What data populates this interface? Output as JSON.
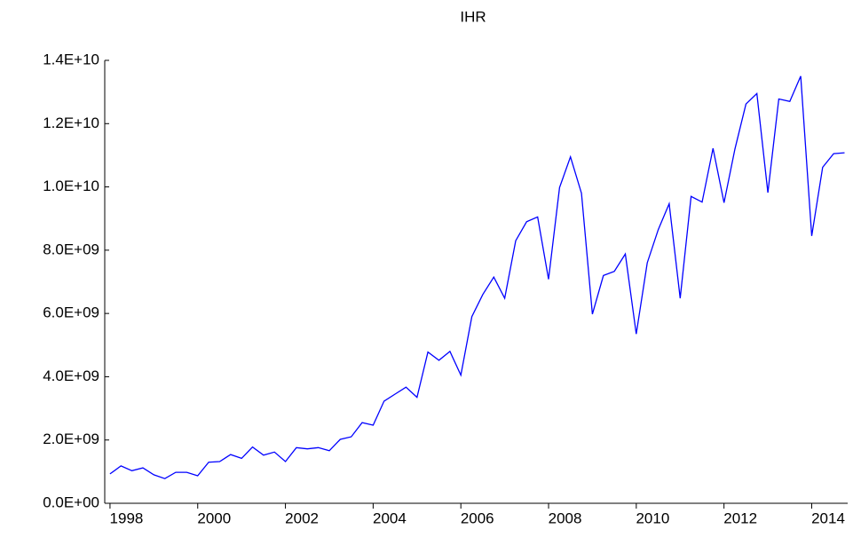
{
  "chart_data": {
    "type": "line",
    "title": "IHR",
    "x": [
      1998,
      1998.25,
      1998.5,
      1998.75,
      1999,
      1999.25,
      1999.5,
      1999.75,
      2000,
      2000.25,
      2000.5,
      2000.75,
      2001,
      2001.25,
      2001.5,
      2001.75,
      2002,
      2002.25,
      2002.5,
      2002.75,
      2003,
      2003.25,
      2003.5,
      2003.75,
      2004,
      2004.25,
      2004.5,
      2004.75,
      2005,
      2005.25,
      2005.5,
      2005.75,
      2006,
      2006.25,
      2006.5,
      2006.75,
      2007,
      2007.25,
      2007.5,
      2007.75,
      2008,
      2008.25,
      2008.5,
      2008.75,
      2009,
      2009.25,
      2009.5,
      2009.75,
      2010,
      2010.25,
      2010.5,
      2010.75,
      2011,
      2011.25,
      2011.5,
      2011.75,
      2012,
      2012.25,
      2012.5,
      2012.75,
      2013,
      2013.25,
      2013.5,
      2013.75,
      2014,
      2014.25,
      2014.5,
      2014.75
    ],
    "series": [
      {
        "name": "IHR",
        "color": "#0000ff",
        "values": [
          930000000,
          1180000000,
          1030000000,
          1120000000,
          900000000,
          780000000,
          980000000,
          980000000,
          870000000,
          1300000000,
          1320000000,
          1540000000,
          1420000000,
          1780000000,
          1520000000,
          1620000000,
          1320000000,
          1760000000,
          1720000000,
          1760000000,
          1660000000,
          2020000000,
          2100000000,
          2550000000,
          2470000000,
          3230000000,
          3450000000,
          3670000000,
          3350000000,
          4780000000,
          4520000000,
          4800000000,
          4050000000,
          5900000000,
          6600000000,
          7150000000,
          6480000000,
          8300000000,
          8900000000,
          9050000000,
          7080000000,
          9980000000,
          10950000000,
          9800000000,
          5980000000,
          7200000000,
          7330000000,
          7880000000,
          5350000000,
          7600000000,
          8650000000,
          9470000000,
          6480000000,
          9700000000,
          9520000000,
          11220000000,
          9500000000,
          11200000000,
          12620000000,
          12950000000,
          9820000000,
          12780000000,
          12700000000,
          13500000000,
          8450000000,
          10620000000,
          11050000000,
          11080000000
        ]
      }
    ],
    "xlim": [
      1997.88,
      2014.82
    ],
    "xticks": [
      1998,
      2000,
      2002,
      2004,
      2006,
      2008,
      2010,
      2012,
      2014
    ],
    "ylim": [
      0,
      14000000000
    ],
    "yticks": [
      {
        "value": 0,
        "label": "0.0E+00"
      },
      {
        "value": 2000000000,
        "label": "2.0E+09"
      },
      {
        "value": 4000000000,
        "label": "4.0E+09"
      },
      {
        "value": 6000000000,
        "label": "6.0E+09"
      },
      {
        "value": 8000000000,
        "label": "8.0E+09"
      },
      {
        "value": 10000000000,
        "label": "1.0E+10"
      },
      {
        "value": 12000000000,
        "label": "1.2E+10"
      },
      {
        "value": 14000000000,
        "label": "1.4E+10"
      }
    ],
    "grid": false
  }
}
